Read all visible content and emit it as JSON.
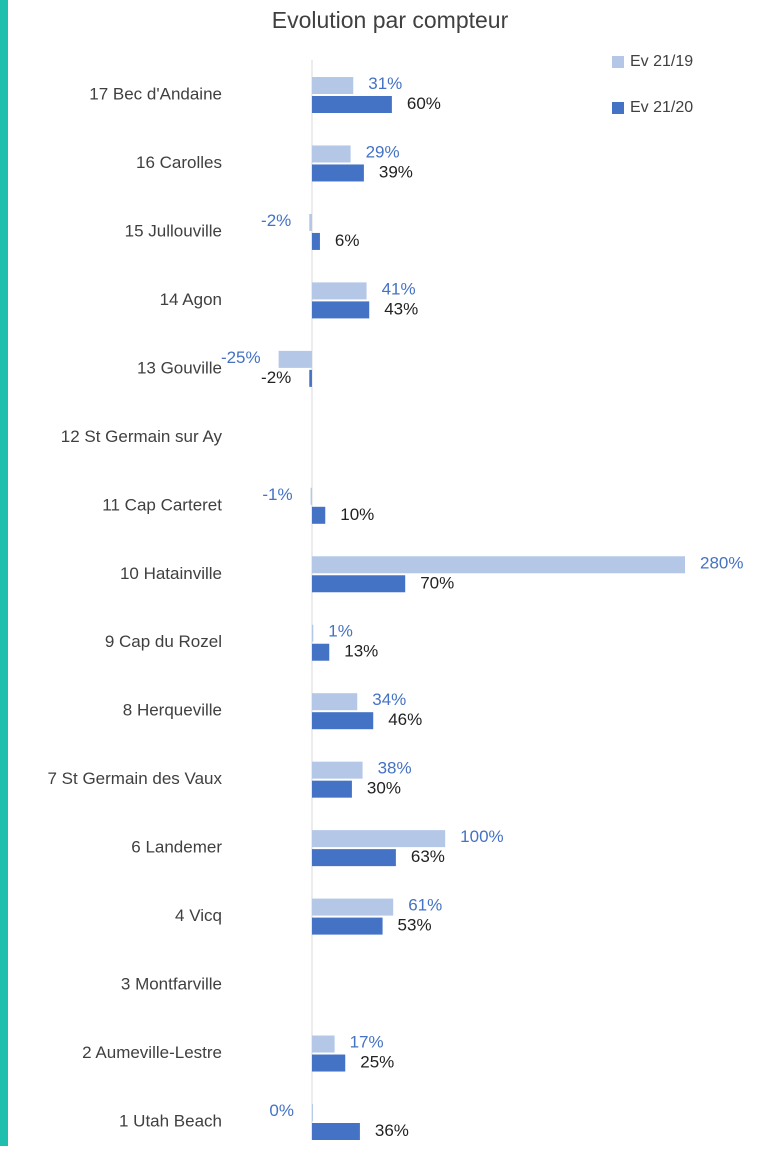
{
  "chart_data": {
    "type": "bar",
    "orientation": "horizontal",
    "title": "Evolution par compteur",
    "categories": [
      "17 Bec d'Andaine",
      "16 Carolles",
      "15 Jullouville",
      "14 Agon",
      "13 Gouville",
      "12 St Germain sur Ay",
      "11 Cap Carteret",
      "10 Hatainville",
      "9 Cap du Rozel",
      "8 Herqueville",
      "7 St Germain des Vaux",
      "6 Landemer",
      "4 Vicq",
      "3 Montfarville",
      "2 Aumeville-Lestre",
      "1 Utah Beach"
    ],
    "series": [
      {
        "name": "Ev 21/19",
        "color": "#b4c7e7",
        "label_color": "#4472c4",
        "values": [
          31,
          29,
          -2,
          41,
          -25,
          null,
          -1,
          280,
          1,
          34,
          38,
          100,
          61,
          null,
          17,
          0
        ],
        "value_labels": [
          "31%",
          "29%",
          "-2%",
          "41%",
          "-25%",
          null,
          "-1%",
          "280%",
          "1%",
          "34%",
          "38%",
          "100%",
          "61%",
          null,
          "17%",
          "0%"
        ]
      },
      {
        "name": "Ev 21/20",
        "color": "#4472c4",
        "label_color": "#222222",
        "values": [
          60,
          39,
          6,
          43,
          -2,
          null,
          10,
          70,
          13,
          46,
          30,
          63,
          53,
          null,
          25,
          36
        ],
        "value_labels": [
          "60%",
          "39%",
          "6%",
          "43%",
          "-2%",
          null,
          "10%",
          "70%",
          "13%",
          "46%",
          "30%",
          "63%",
          "53%",
          null,
          "25%",
          "36%"
        ]
      }
    ],
    "xlim": [
      -60,
      280
    ],
    "legend": "top-right"
  }
}
